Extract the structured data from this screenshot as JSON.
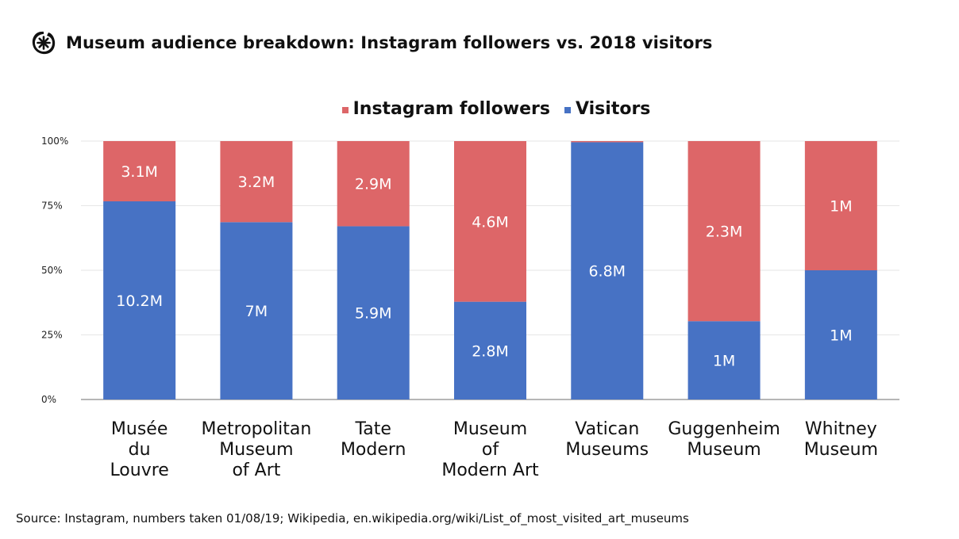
{
  "header": {
    "title": "Museum audience breakdown: Instagram followers vs. 2018 visitors",
    "icon": "asterisk-circle-logo-icon"
  },
  "legend": [
    {
      "label": "Instagram followers",
      "color": "#dd6668"
    },
    {
      "label": "Visitors",
      "color": "#4772c4"
    }
  ],
  "footer": {
    "source": "Source: Instagram, numbers taken 01/08/19; Wikipedia, en.wikipedia.org/wiki/List_of_most_visited_art_museums"
  },
  "chart_data": {
    "type": "bar",
    "stacked": "percent",
    "title": "Museum audience breakdown: Instagram followers vs. 2018 visitors",
    "xlabel": "",
    "ylabel": "",
    "ylim": [
      0,
      100
    ],
    "yticks": [
      "0%",
      "25%",
      "50%",
      "75%",
      "100%"
    ],
    "grid": true,
    "legend_position": "top",
    "categories": [
      [
        "Musée",
        "du",
        "Louvre"
      ],
      [
        "Metropolitan",
        "Museum",
        "of Art"
      ],
      [
        "Tate",
        "Modern"
      ],
      [
        "Museum",
        "of",
        "Modern Art"
      ],
      [
        "Vatican",
        "Museums"
      ],
      [
        "Guggenheim",
        "Museum"
      ],
      [
        "Whitney",
        "Museum"
      ]
    ],
    "series": [
      {
        "name": "Visitors",
        "color": "#4772c4",
        "values_millions": [
          10.2,
          7.0,
          5.9,
          2.8,
          6.8,
          1.0,
          1.0
        ],
        "labels": [
          "10.2M",
          "7M",
          "5.9M",
          "2.8M",
          "6.8M",
          "1M",
          "1M"
        ]
      },
      {
        "name": "Instagram followers",
        "color": "#dd6668",
        "values_millions": [
          3.1,
          3.2,
          2.9,
          4.6,
          0.03,
          2.3,
          1.0
        ],
        "labels": [
          "3.1M",
          "3.2M",
          "2.9M",
          "4.6M",
          "",
          "2.3M",
          "1M"
        ]
      }
    ]
  }
}
